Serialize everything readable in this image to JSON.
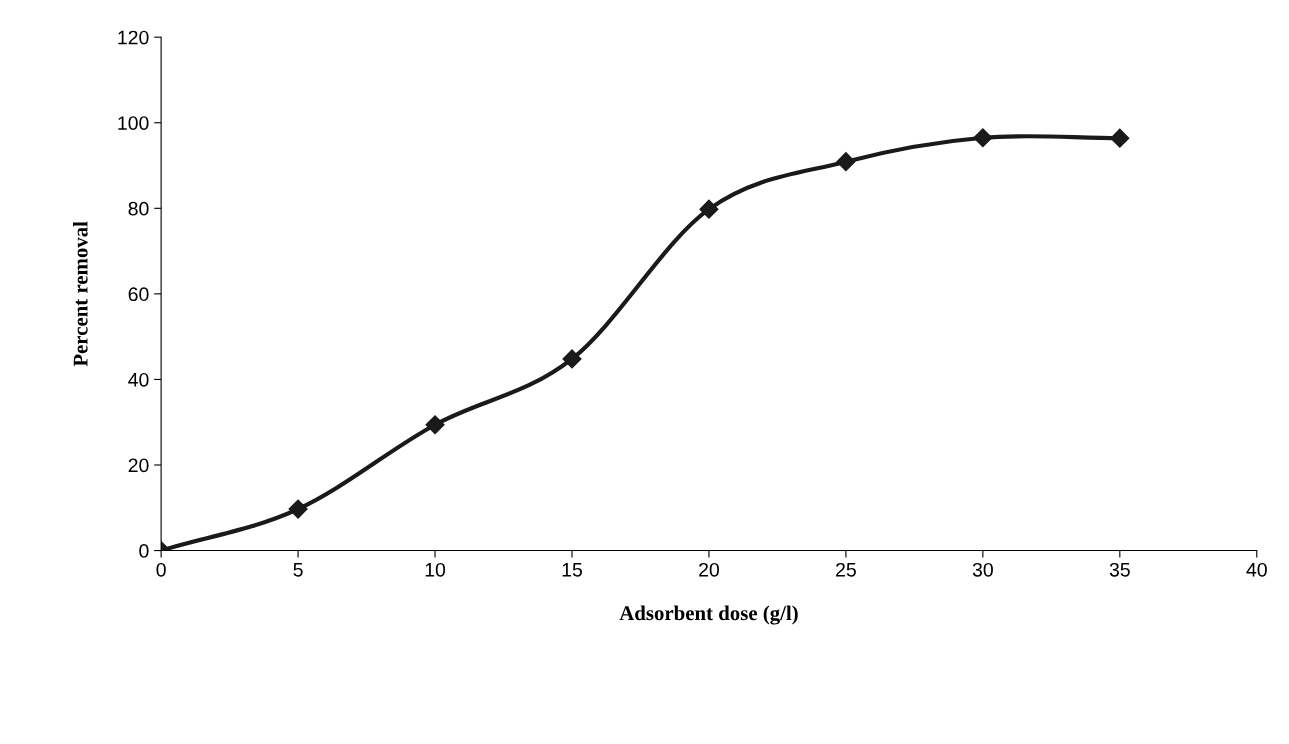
{
  "chart_data": {
    "type": "line",
    "xlabel": "Adsorbent dose (g/l)",
    "ylabel": "Percent removal",
    "x": [
      0,
      5,
      10,
      15,
      20,
      25,
      30,
      35
    ],
    "series": [
      {
        "color": "#1a1a1a",
        "values": [
          0,
          9.7,
          29.4,
          44.8,
          79.8,
          90.9,
          96.5,
          96.4
        ]
      }
    ],
    "xlim": [
      0,
      40
    ],
    "xticks": [
      0,
      5,
      10,
      15,
      20,
      25,
      30,
      35,
      40
    ],
    "ylim": [
      0,
      120
    ],
    "yticks": [
      0,
      20,
      40,
      60,
      80,
      100,
      120
    ],
    "grid": false,
    "legend": false,
    "marker": "diamond",
    "line_style": "solid"
  }
}
